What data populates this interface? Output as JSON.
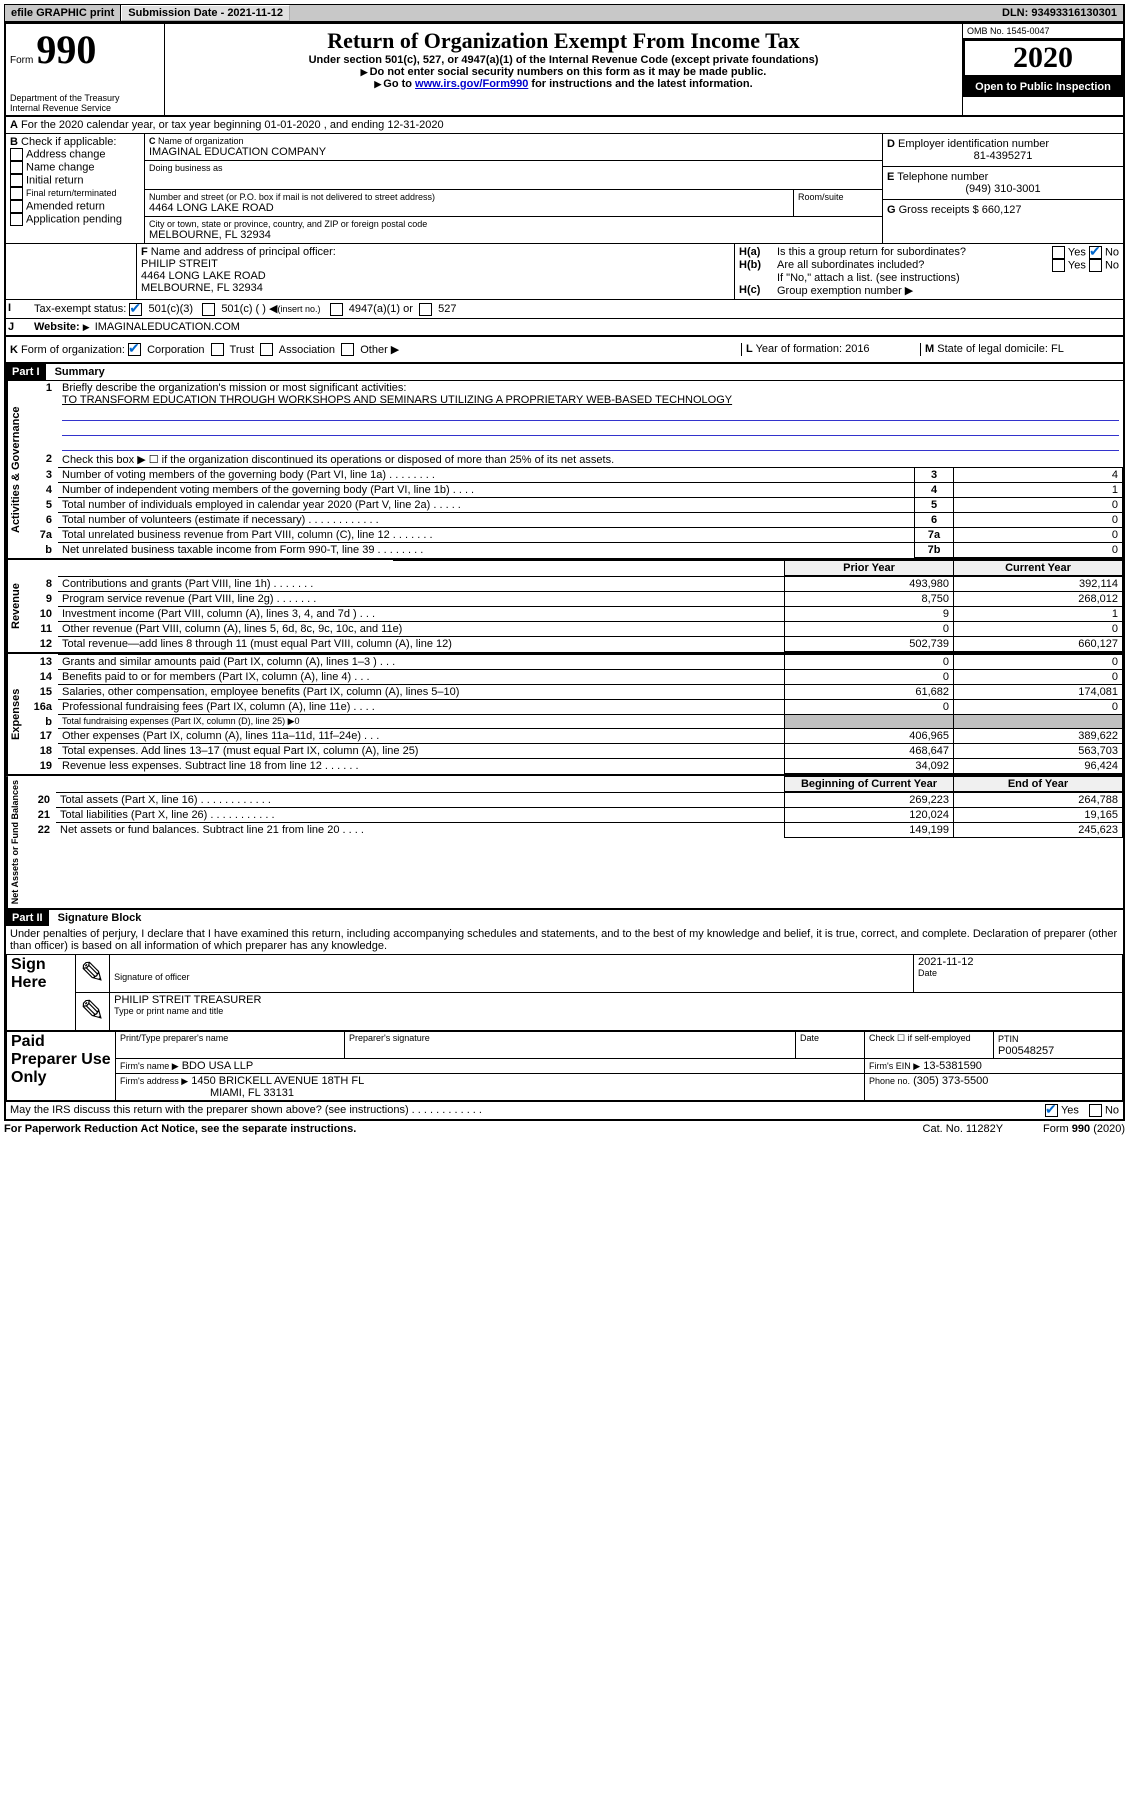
{
  "topbar": {
    "efile": "efile GRAPHIC print",
    "submission_label": "Submission Date - 2021-11-12",
    "dln": "DLN: 93493316130301"
  },
  "header": {
    "form_prefix": "Form",
    "form_number": "990",
    "title": "Return of Organization Exempt From Income Tax",
    "subtitle1": "Under section 501(c), 527, or 4947(a)(1) of the Internal Revenue Code (except private foundations)",
    "subtitle2": "Do not enter social security numbers on this form as it may be made public.",
    "subtitle3_pre": "Go to ",
    "subtitle3_link": "www.irs.gov/Form990",
    "subtitle3_post": " for instructions and the latest information.",
    "omb": "OMB No. 1545-0047",
    "year": "2020",
    "open": "Open to Public Inspection",
    "dept1": "Department of the Treasury",
    "dept2": "Internal Revenue Service"
  },
  "sectionA": {
    "line": "For the 2020 calendar year, or tax year beginning 01-01-2020   , and ending 12-31-2020",
    "prefix": "A"
  },
  "sectionB": {
    "label": "Check if applicable:",
    "opts": [
      "Address change",
      "Name change",
      "Initial return",
      "Final return/terminated",
      "Amended return",
      "Application pending"
    ],
    "prefix": "B"
  },
  "sectionC": {
    "name_label": "Name of organization",
    "name": "IMAGINAL EDUCATION COMPANY",
    "dba_label": "Doing business as",
    "street_label": "Number and street (or P.O. box if mail is not delivered to street address)",
    "room_label": "Room/suite",
    "street": "4464 LONG LAKE ROAD",
    "city_label": "City or town, state or province, country, and ZIP or foreign postal code",
    "city": "MELBOURNE, FL  32934",
    "prefix": "C"
  },
  "sectionD": {
    "label": "Employer identification number",
    "value": "81-4395271",
    "prefix": "D"
  },
  "sectionE": {
    "label": "Telephone number",
    "value": "(949) 310-3001",
    "prefix": "E"
  },
  "sectionG": {
    "label": "Gross receipts $",
    "value": "660,127",
    "prefix": "G"
  },
  "sectionF": {
    "label": "Name and address of principal officer:",
    "name": "PHILIP STREIT",
    "addr1": "4464 LONG LAKE ROAD",
    "addr2": "MELBOURNE, FL  32934",
    "prefix": "F"
  },
  "sectionH": {
    "a": "Is this a group return for subordinates?",
    "b": "Are all subordinates included?",
    "b_note": "If \"No,\" attach a list. (see instructions)",
    "c": "Group exemption number",
    "yes": "Yes",
    "no": "No",
    "ha": "H(a)",
    "hb": "H(b)",
    "hc": "H(c)"
  },
  "sectionI": {
    "label": "Tax-exempt status:",
    "opt1": "501(c)(3)",
    "opt2": "501(c) (  )",
    "opt2_hint": "(insert no.)",
    "opt3": "4947(a)(1) or",
    "opt4": "527",
    "prefix": "I"
  },
  "sectionJ": {
    "label": "Website:",
    "value": "IMAGINALEDUCATION.COM",
    "prefix": "J"
  },
  "sectionK": {
    "label": "Form of organization:",
    "opts": [
      "Corporation",
      "Trust",
      "Association",
      "Other"
    ],
    "prefix": "K"
  },
  "sectionL": {
    "label": "Year of formation:",
    "value": "2016",
    "prefix": "L"
  },
  "sectionM": {
    "label": "State of legal domicile:",
    "value": "FL",
    "prefix": "M"
  },
  "part1": {
    "header": "Part I",
    "title": "Summary",
    "q1": "Briefly describe the organization's mission or most significant activities:",
    "q1_ans": "TO TRANSFORM EDUCATION THROUGH WORKSHOPS AND SEMINARS UTILIZING A PROPRIETARY WEB-BASED TECHNOLOGY",
    "q2": "Check this box ▶ ☐  if the organization discontinued its operations or disposed of more than 25% of its net assets.",
    "vlabels": {
      "gov": "Activities & Governance",
      "rev": "Revenue",
      "exp": "Expenses",
      "net": "Net Assets or Fund Balances"
    },
    "gov_rows": [
      {
        "n": "3",
        "t": "Number of voting members of the governing body (Part VI, line 1a)   .    .    .    .    .    .    .    .",
        "k": "3",
        "v": "4"
      },
      {
        "n": "4",
        "t": "Number of independent voting members of the governing body (Part VI, line 1b)   .    .    .    .",
        "k": "4",
        "v": "1"
      },
      {
        "n": "5",
        "t": "Total number of individuals employed in calendar year 2020 (Part V, line 2a)   .    .    .    .    .",
        "k": "5",
        "v": "0"
      },
      {
        "n": "6",
        "t": "Total number of volunteers (estimate if necessary)   .    .    .    .    .    .    .    .    .    .    .    .",
        "k": "6",
        "v": "0"
      },
      {
        "n": "7a",
        "t": "Total unrelated business revenue from Part VIII, column (C), line 12   .    .    .    .    .    .    .",
        "k": "7a",
        "v": "0"
      },
      {
        "n": "b",
        "t": "Net unrelated business taxable income from Form 990-T, line 39   .    .    .    .    .    .    .    .",
        "k": "7b",
        "v": "0"
      }
    ],
    "col_prior": "Prior Year",
    "col_current": "Current Year",
    "col_begin": "Beginning of Current Year",
    "col_end": "End of Year",
    "rev_rows": [
      {
        "n": "8",
        "t": "Contributions and grants (Part VIII, line 1h)   .    .    .    .    .    .    .",
        "p": "493,980",
        "c": "392,114"
      },
      {
        "n": "9",
        "t": "Program service revenue (Part VIII, line 2g)   .    .    .    .    .    .    .",
        "p": "8,750",
        "c": "268,012"
      },
      {
        "n": "10",
        "t": "Investment income (Part VIII, column (A), lines 3, 4, and 7d )   .    .    .",
        "p": "9",
        "c": "1"
      },
      {
        "n": "11",
        "t": "Other revenue (Part VIII, column (A), lines 5, 6d, 8c, 9c, 10c, and 11e)",
        "p": "0",
        "c": "0"
      },
      {
        "n": "12",
        "t": "Total revenue—add lines 8 through 11 (must equal Part VIII, column (A), line 12)",
        "p": "502,739",
        "c": "660,127"
      }
    ],
    "exp_rows": [
      {
        "n": "13",
        "t": "Grants and similar amounts paid (Part IX, column (A), lines 1–3 )   .    .    .",
        "p": "0",
        "c": "0"
      },
      {
        "n": "14",
        "t": "Benefits paid to or for members (Part IX, column (A), line 4)   .    .    .",
        "p": "0",
        "c": "0"
      },
      {
        "n": "15",
        "t": "Salaries, other compensation, employee benefits (Part IX, column (A), lines 5–10)",
        "p": "61,682",
        "c": "174,081"
      },
      {
        "n": "16a",
        "t": "Professional fundraising fees (Part IX, column (A), line 11e)   .    .    .    .",
        "p": "0",
        "c": "0"
      },
      {
        "n": "b",
        "t": "Total fundraising expenses (Part IX, column (D), line 25) ▶0",
        "p": "",
        "c": "",
        "grey": true
      },
      {
        "n": "17",
        "t": "Other expenses (Part IX, column (A), lines 11a–11d, 11f–24e)   .    .    .",
        "p": "406,965",
        "c": "389,622"
      },
      {
        "n": "18",
        "t": "Total expenses. Add lines 13–17 (must equal Part IX, column (A), line 25)",
        "p": "468,647",
        "c": "563,703"
      },
      {
        "n": "19",
        "t": "Revenue less expenses. Subtract line 18 from line 12   .    .    .    .    .    .",
        "p": "34,092",
        "c": "96,424"
      }
    ],
    "net_rows": [
      {
        "n": "20",
        "t": "Total assets (Part X, line 16)   .    .    .    .    .    .    .    .    .    .    .    .",
        "p": "269,223",
        "c": "264,788"
      },
      {
        "n": "21",
        "t": "Total liabilities (Part X, line 26)   .    .    .    .    .    .    .    .    .    .    .",
        "p": "120,024",
        "c": "19,165"
      },
      {
        "n": "22",
        "t": "Net assets or fund balances. Subtract line 21 from line 20   .    .    .    .",
        "p": "149,199",
        "c": "245,623"
      }
    ]
  },
  "part2": {
    "header": "Part II",
    "title": "Signature Block",
    "declaration": "Under penalties of perjury, I declare that I have examined this return, including accompanying schedules and statements, and to the best of my knowledge and belief, it is true, correct, and complete. Declaration of preparer (other than officer) is based on all information of which preparer has any knowledge."
  },
  "sign": {
    "here": "Sign Here",
    "sig_label": "Signature of officer",
    "date_label": "Date",
    "date": "2021-11-12",
    "name": "PHILIP STREIT  TREASURER",
    "name_label": "Type or print name and title"
  },
  "paid": {
    "label": "Paid Preparer Use Only",
    "print_name": "Print/Type preparer's name",
    "prep_sig": "Preparer's signature",
    "date": "Date",
    "check_self": "Check ☐ if self-employed",
    "ptin_label": "PTIN",
    "ptin": "P00548257",
    "firm_name_label": "Firm's name   ▶",
    "firm_name": "BDO USA LLP",
    "firm_ein_label": "Firm's EIN ▶",
    "firm_ein": "13-5381590",
    "firm_addr_label": "Firm's address ▶",
    "firm_addr1": "1450 BRICKELL AVENUE 18TH FL",
    "firm_addr2": "MIAMI, FL  33131",
    "phone_label": "Phone no.",
    "phone": "(305) 373-5500"
  },
  "footer": {
    "discuss": "May the IRS discuss this return with the preparer shown above? (see instructions)   .    .    .    .    .    .    .    .    .    .    .    .",
    "yes": "Yes",
    "no": "No",
    "paperwork": "For Paperwork Reduction Act Notice, see the separate instructions.",
    "cat": "Cat. No. 11282Y",
    "form": "Form 990 (2020)"
  }
}
